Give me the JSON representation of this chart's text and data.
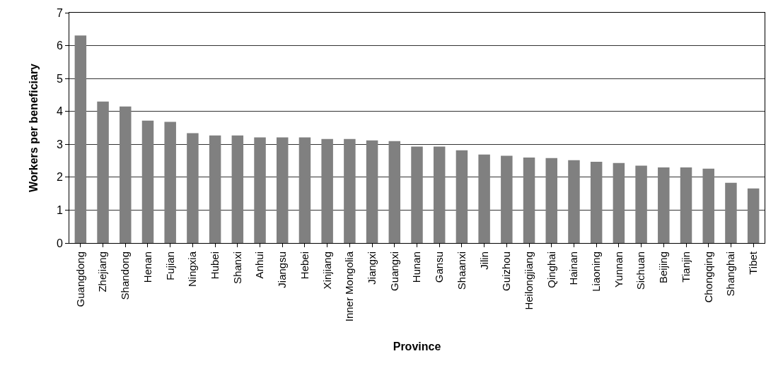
{
  "chart_data": {
    "type": "bar",
    "xlabel": "Province",
    "ylabel": "Workers per beneficiary",
    "categories": [
      "Guangdong",
      "Zhejiang",
      "Shandong",
      "Henan",
      "Fujian",
      "Ningxia",
      "Hubei",
      "Shanxi",
      "Anhui",
      "Jiangsu",
      "Hebei",
      "Xinjiang",
      "Inner Mongolia",
      "Jiangxi",
      "Guangxi",
      "Hunan",
      "Gansu",
      "Shaanxi",
      "Jilin",
      "Guizhou",
      "Heilongjiang",
      "Qinghai",
      "Hainan",
      "Liaoning",
      "Yunnan",
      "Sichuan",
      "Beijing",
      "Tianjin",
      "Chongqing",
      "Shanghai",
      "Tibet"
    ],
    "values": [
      6.31,
      4.3,
      4.15,
      3.72,
      3.68,
      3.34,
      3.27,
      3.27,
      3.21,
      3.21,
      3.21,
      3.16,
      3.16,
      3.12,
      3.1,
      2.93,
      2.93,
      2.82,
      2.69,
      2.65,
      2.6,
      2.58,
      2.52,
      2.47,
      2.43,
      2.35,
      2.3,
      2.3,
      2.26,
      1.83,
      1.66
    ],
    "color": "#808080",
    "ylim": [
      0,
      7
    ],
    "yticks": [
      0,
      1,
      2,
      3,
      4,
      5,
      6,
      7
    ],
    "grid": "y",
    "legend": false
  }
}
